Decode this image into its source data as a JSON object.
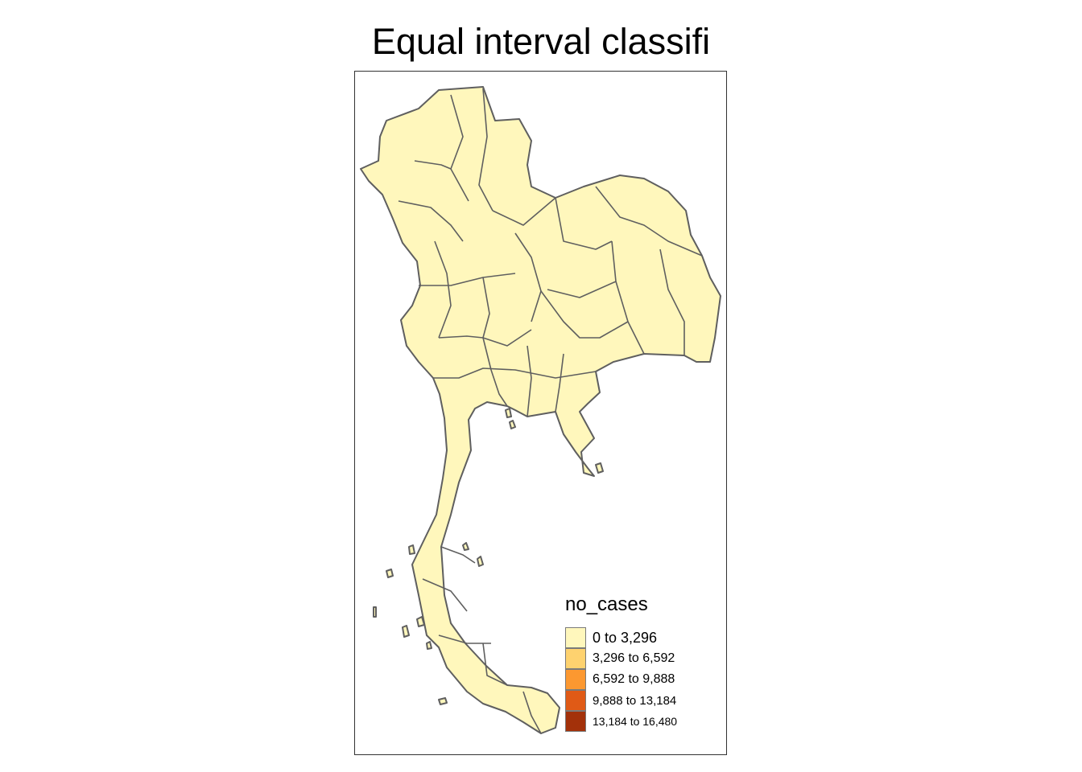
{
  "title": "Equal interval classifi",
  "legend": {
    "title": "no_cases",
    "items": [
      {
        "label": "0 to 3,296",
        "color": "#FFF7BC"
      },
      {
        "label": "3,296 to 6,592",
        "color": "#FED26F"
      },
      {
        "label": "6,592 to 9,888",
        "color": "#FC9830"
      },
      {
        "label": "9,888 to 13,184",
        "color": "#E05A16"
      },
      {
        "label": "13,184 to 16,480",
        "color": "#A3310A"
      }
    ]
  },
  "map": {
    "fill": "#FFF7BC",
    "stroke": "#5f5f5f"
  }
}
